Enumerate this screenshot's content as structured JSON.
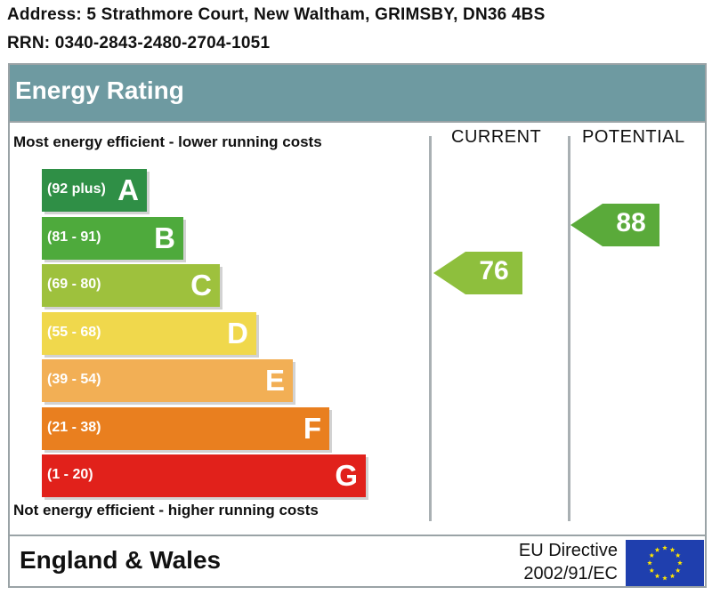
{
  "address_line": "Address: 5 Strathmore Court, New Waltham, GRIMSBY, DN36 4BS",
  "rrn_line": "RRN: 0340-2843-2480-2704-1051",
  "chart": {
    "title": "Energy Rating",
    "top_note": "Most energy efficient - lower running costs",
    "bottom_note": "Not energy efficient - higher running costs",
    "columns": {
      "current": "CURRENT",
      "potential": "POTENTIAL"
    },
    "bands": [
      {
        "letter": "A",
        "range": "(92 plus)",
        "color": "#2f8f46"
      },
      {
        "letter": "B",
        "range": "(81 - 91)",
        "color": "#4eaa3c"
      },
      {
        "letter": "C",
        "range": "(69 - 80)",
        "color": "#9ec13d"
      },
      {
        "letter": "D",
        "range": "(55 - 68)",
        "color": "#f0d84c"
      },
      {
        "letter": "E",
        "range": "(39 - 54)",
        "color": "#f2af55"
      },
      {
        "letter": "F",
        "range": "(21 - 38)",
        "color": "#e97f1f"
      },
      {
        "letter": "G",
        "range": "(1 - 20)",
        "color": "#e1211b"
      }
    ],
    "current": {
      "value": "76",
      "color": "#8ebf3d"
    },
    "potential": {
      "value": "88",
      "color": "#5aaa3a"
    }
  },
  "footer": {
    "country": "England & Wales",
    "directive_line1": "EU Directive",
    "directive_line2": "2002/91/EC",
    "flag_color": "#1f3fae",
    "star_color": "#ffe600"
  }
}
